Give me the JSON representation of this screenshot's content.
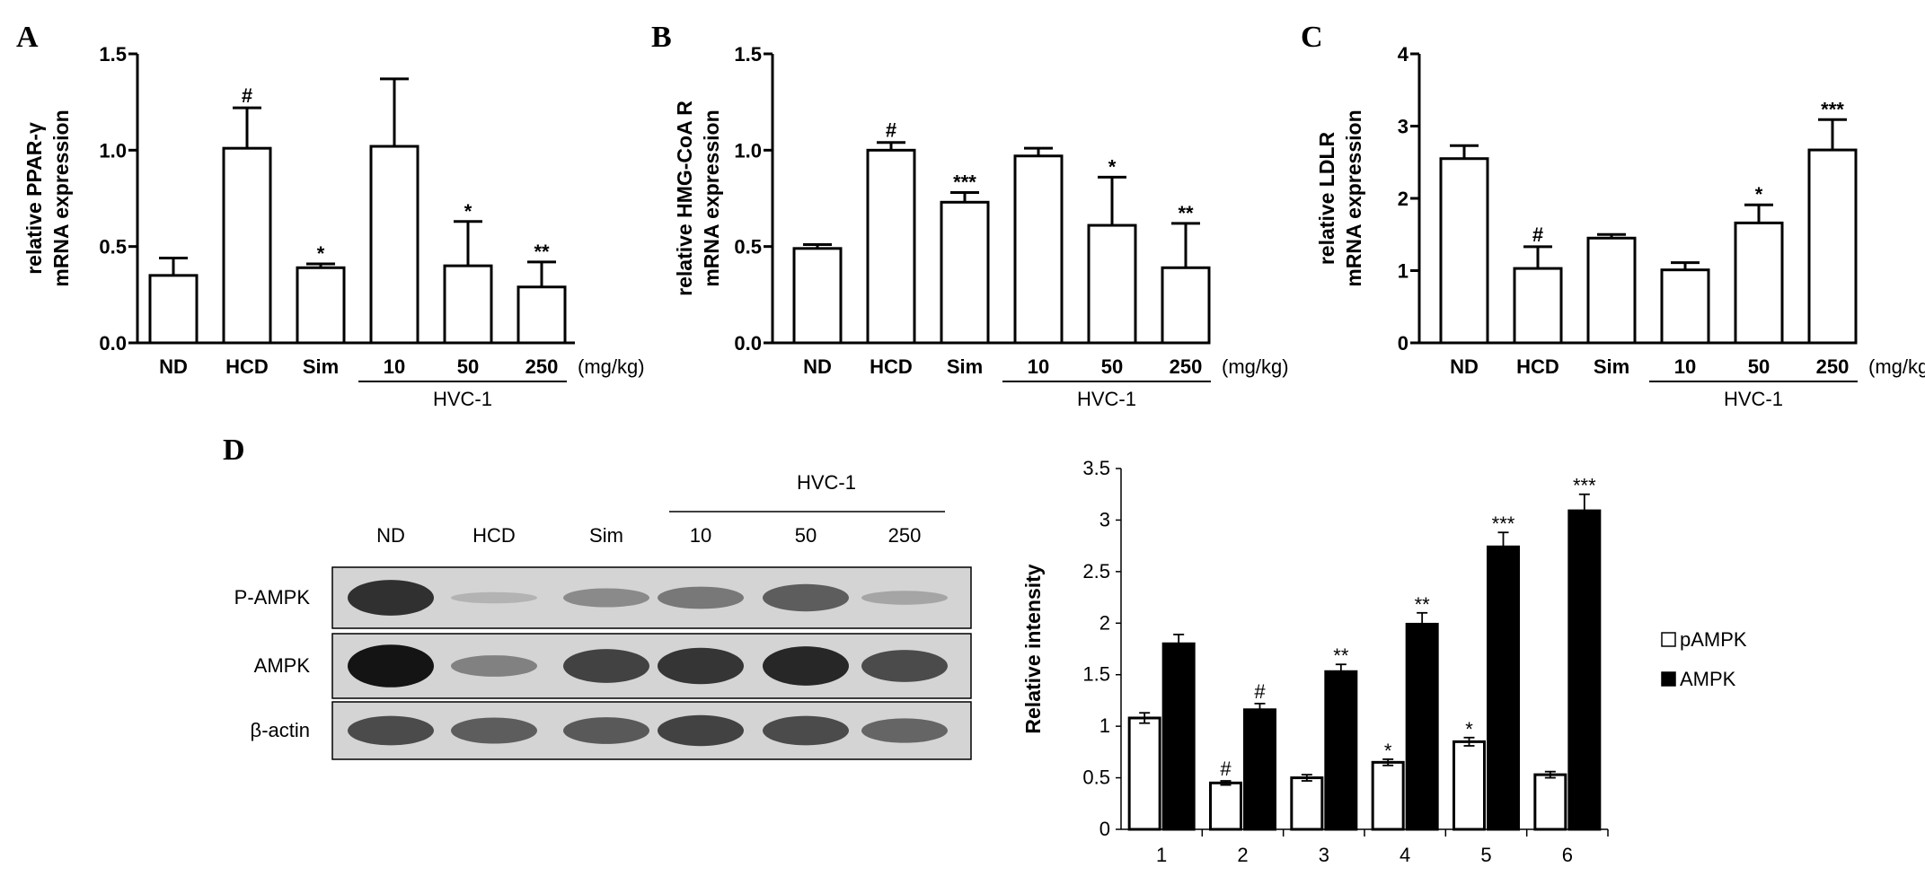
{
  "panels": {
    "A": "A",
    "B": "B",
    "C": "C",
    "D": "D"
  },
  "chart_data": [
    {
      "panel": "A",
      "type": "bar",
      "ylabel_line1": "relative PPAR-γ",
      "ylabel_line2": "mRNA expression",
      "categories": [
        "ND",
        "HCD",
        "Sim",
        "10",
        "50",
        "250"
      ],
      "values": [
        0.35,
        1.01,
        0.39,
        1.02,
        0.4,
        0.29
      ],
      "errors": [
        0.09,
        0.21,
        0.02,
        0.35,
        0.23,
        0.13
      ],
      "significance": [
        "",
        "#",
        "*",
        "",
        "*",
        "**"
      ],
      "ylim": [
        0,
        1.5
      ],
      "yticks": [
        "0.0",
        "0.5",
        "1.0",
        "1.5"
      ],
      "ytick_values": [
        0,
        0.5,
        1.0,
        1.5
      ],
      "unit_label": "(mg/kg)",
      "group_label": "HVC-1"
    },
    {
      "panel": "B",
      "type": "bar",
      "ylabel_line1": "relative HMG-CoA R",
      "ylabel_line2": "mRNA expression",
      "categories": [
        "ND",
        "HCD",
        "Sim",
        "10",
        "50",
        "250"
      ],
      "values": [
        0.49,
        1.0,
        0.73,
        0.97,
        0.61,
        0.39
      ],
      "errors": [
        0.02,
        0.04,
        0.05,
        0.04,
        0.25,
        0.23
      ],
      "significance": [
        "",
        "#",
        "***",
        "",
        "*",
        "**"
      ],
      "ylim": [
        0,
        1.5
      ],
      "yticks": [
        "0.0",
        "0.5",
        "1.0",
        "1.5"
      ],
      "ytick_values": [
        0,
        0.5,
        1.0,
        1.5
      ],
      "unit_label": "(mg/kg)",
      "group_label": "HVC-1"
    },
    {
      "panel": "C",
      "type": "bar",
      "ylabel_line1": "relative LDLR",
      "ylabel_line2": "mRNA expression",
      "categories": [
        "ND",
        "HCD",
        "Sim",
        "10",
        "50",
        "250"
      ],
      "values": [
        2.55,
        1.03,
        1.45,
        1.01,
        1.66,
        2.67
      ],
      "errors": [
        0.18,
        0.3,
        0.05,
        0.1,
        0.25,
        0.42
      ],
      "significance": [
        "",
        "#",
        "",
        "",
        "*",
        "***"
      ],
      "ylim": [
        0,
        4
      ],
      "yticks": [
        "0",
        "1",
        "2",
        "3",
        "4"
      ],
      "ytick_values": [
        0,
        1,
        2,
        3,
        4
      ],
      "unit_label": "(mg/kg)",
      "group_label": "HVC-1"
    },
    {
      "panel": "D",
      "type": "bar",
      "ylabel": "Relative intensity",
      "categories": [
        "1",
        "2",
        "3",
        "4",
        "5",
        "6"
      ],
      "ylim": [
        0,
        3.5
      ],
      "yticks": [
        "0",
        "0.5",
        "1",
        "1.5",
        "2",
        "2.5",
        "3",
        "3.5"
      ],
      "ytick_values": [
        0,
        0.5,
        1,
        1.5,
        2,
        2.5,
        3,
        3.5
      ],
      "series": [
        {
          "name": "pAMPK",
          "values": [
            1.08,
            0.45,
            0.5,
            0.65,
            0.85,
            0.53
          ],
          "errors": [
            0.05,
            0.02,
            0.03,
            0.03,
            0.04,
            0.03
          ],
          "significance": [
            "",
            "#",
            "",
            "*",
            "*",
            ""
          ]
        },
        {
          "name": "AMPK",
          "values": [
            1.8,
            1.16,
            1.53,
            1.99,
            2.74,
            3.09
          ],
          "errors": [
            0.09,
            0.06,
            0.07,
            0.11,
            0.14,
            0.16
          ],
          "significance": [
            "",
            "#",
            "**",
            "**",
            "***",
            "***"
          ]
        }
      ],
      "legend_position": "right"
    }
  ],
  "blot": {
    "group_label": "HVC-1",
    "lane_labels": [
      "ND",
      "HCD",
      "Sim",
      "10",
      "50",
      "250"
    ],
    "row_labels": [
      "P-AMPK",
      "AMPK",
      "β-actin"
    ],
    "band_intensity": [
      [
        0.85,
        0.12,
        0.35,
        0.45,
        0.6,
        0.2
      ],
      [
        1.0,
        0.4,
        0.75,
        0.82,
        0.9,
        0.7
      ],
      [
        0.7,
        0.6,
        0.62,
        0.75,
        0.7,
        0.55
      ]
    ]
  }
}
